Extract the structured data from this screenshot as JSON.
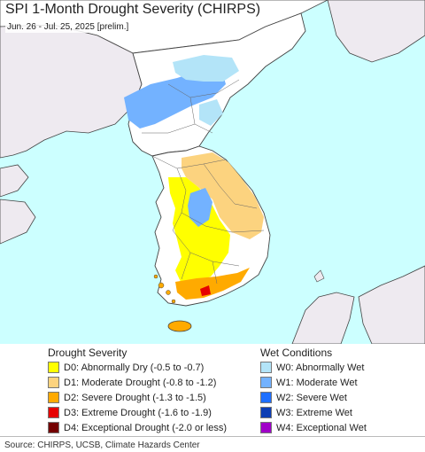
{
  "header": {
    "title": "SPI 1-Month Drought Severity (CHIRPS)",
    "subtitle": "Jun. 26 - Jul. 25, 2025 [prelim.]"
  },
  "colors": {
    "sea": "#ccffff",
    "land": "#ffffff",
    "neighbor_land": "#eeeaf0",
    "border": "#333333",
    "d0": "#ffff00",
    "d1": "#fcd37f",
    "d2": "#ffaa00",
    "d3": "#e60000",
    "d4": "#730000",
    "w0": "#b3e4f8",
    "w1": "#73b2ff",
    "w2": "#1e6fff",
    "w3": "#0c3db4",
    "w4": "#a000c8"
  },
  "legend": {
    "drought": {
      "heading": "Drought Severity",
      "items": [
        {
          "label": "D0: Abnormally Dry (-0.5 to -0.7)",
          "color": "#ffff00"
        },
        {
          "label": "D1: Moderate Drought (-0.8 to -1.2)",
          "color": "#fcd37f"
        },
        {
          "label": "D2: Severe Drought (-1.3 to -1.5)",
          "color": "#ffaa00"
        },
        {
          "label": "D3: Extreme Drought (-1.6 to -1.9)",
          "color": "#e60000"
        },
        {
          "label": "D4: Exceptional Drought (-2.0 or less)",
          "color": "#730000"
        }
      ]
    },
    "wet": {
      "heading": "Wet Conditions",
      "items": [
        {
          "label": "W0: Abnormally Wet",
          "color": "#b3e4f8"
        },
        {
          "label": "W1: Moderate Wet",
          "color": "#73b2ff"
        },
        {
          "label": "W2: Severe Wet",
          "color": "#1e6fff"
        },
        {
          "label": "W3: Extreme Wet",
          "color": "#0c3db4"
        },
        {
          "label": "W4: Exceptional Wet",
          "color": "#a000c8"
        }
      ]
    }
  },
  "footer": {
    "source": "Source: CHIRPS, UCSB, Climate Hazards Center"
  }
}
